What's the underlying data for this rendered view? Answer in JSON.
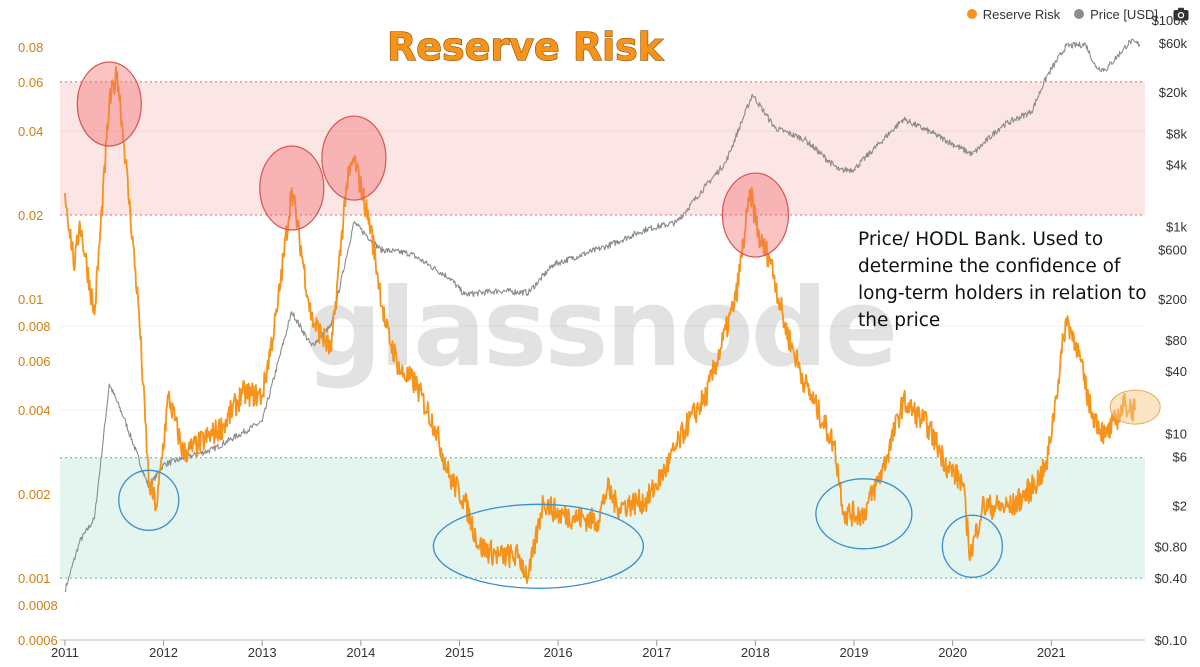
{
  "chart_data": {
    "type": "line",
    "title": "Reserve Risk",
    "watermark": "glassnode",
    "annotation": "Price/ HODL Bank. Used to determine the confidence of long-term holders in relation to the price",
    "legend": {
      "placement": "top-right",
      "items": [
        "Reserve Risk",
        "Price [USD]"
      ]
    },
    "colors": {
      "reserve_risk": "#f7931a",
      "price": "#8c8c8c",
      "high_zone": "#fbdcdc",
      "low_zone": "#e3f5ee",
      "high_line": "#e06666",
      "low_line": "#52b788"
    },
    "x": {
      "range": [
        2010.95,
        2021.95
      ],
      "tick_labels": [
        "2011",
        "2012",
        "2013",
        "2014",
        "2015",
        "2016",
        "2017",
        "2018",
        "2019",
        "2020",
        "2021"
      ]
    },
    "y_left": {
      "scale": "log",
      "range": [
        0.0006,
        0.1
      ],
      "tick_labels": [
        "0.08",
        "0.06",
        "0.04",
        "0.02",
        "0.01",
        "0.008",
        "0.006",
        "0.004",
        "0.002",
        "0.001",
        "0.0008",
        "0.0006"
      ]
    },
    "y_right": {
      "scale": "log",
      "range": [
        0.1,
        100000
      ],
      "tick_labels": [
        "$100k",
        "$60k",
        "$20k",
        "$8k",
        "$4k",
        "$1k",
        "$600",
        "$200",
        "$80",
        "$40",
        "$10",
        "$6",
        "$2",
        "$0.80",
        "$0.40",
        "$0.10"
      ]
    },
    "zones": {
      "high_band": [
        0.02,
        0.06
      ],
      "low_band": [
        0.001,
        0.0027
      ]
    },
    "series": [
      {
        "name": "Reserve Risk",
        "axis": "left",
        "points": [
          [
            2011.0,
            0.024
          ],
          [
            2011.1,
            0.013
          ],
          [
            2011.15,
            0.019
          ],
          [
            2011.3,
            0.0088
          ],
          [
            2011.45,
            0.05
          ],
          [
            2011.53,
            0.065
          ],
          [
            2011.6,
            0.036
          ],
          [
            2011.75,
            0.009
          ],
          [
            2011.85,
            0.0022
          ],
          [
            2011.93,
            0.0018
          ],
          [
            2012.05,
            0.0045
          ],
          [
            2012.2,
            0.0028
          ],
          [
            2012.35,
            0.003
          ],
          [
            2012.6,
            0.0035
          ],
          [
            2012.8,
            0.0046
          ],
          [
            2013.0,
            0.0045
          ],
          [
            2013.15,
            0.009
          ],
          [
            2013.3,
            0.025
          ],
          [
            2013.5,
            0.0085
          ],
          [
            2013.7,
            0.0065
          ],
          [
            2013.85,
            0.025
          ],
          [
            2013.93,
            0.032
          ],
          [
            2014.1,
            0.018
          ],
          [
            2014.25,
            0.008
          ],
          [
            2014.4,
            0.0055
          ],
          [
            2014.55,
            0.005
          ],
          [
            2014.75,
            0.0035
          ],
          [
            2014.9,
            0.0023
          ],
          [
            2015.05,
            0.0019
          ],
          [
            2015.2,
            0.0013
          ],
          [
            2015.4,
            0.0012
          ],
          [
            2015.6,
            0.0012
          ],
          [
            2015.7,
            0.001
          ],
          [
            2015.85,
            0.0019
          ],
          [
            2016.0,
            0.0017
          ],
          [
            2016.4,
            0.0016
          ],
          [
            2016.5,
            0.0021
          ],
          [
            2016.6,
            0.0018
          ],
          [
            2016.9,
            0.0019
          ],
          [
            2017.1,
            0.0025
          ],
          [
            2017.3,
            0.0035
          ],
          [
            2017.5,
            0.0045
          ],
          [
            2017.8,
            0.01
          ],
          [
            2017.95,
            0.024
          ],
          [
            2018.05,
            0.016
          ],
          [
            2018.15,
            0.014
          ],
          [
            2018.3,
            0.008
          ],
          [
            2018.5,
            0.005
          ],
          [
            2018.8,
            0.003
          ],
          [
            2018.9,
            0.0017
          ],
          [
            2019.1,
            0.0017
          ],
          [
            2019.3,
            0.0025
          ],
          [
            2019.5,
            0.0043
          ],
          [
            2019.75,
            0.0035
          ],
          [
            2019.95,
            0.0025
          ],
          [
            2020.1,
            0.0022
          ],
          [
            2020.18,
            0.0012
          ],
          [
            2020.3,
            0.0018
          ],
          [
            2020.6,
            0.0018
          ],
          [
            2020.8,
            0.0021
          ],
          [
            2020.95,
            0.0025
          ],
          [
            2021.05,
            0.0045
          ],
          [
            2021.15,
            0.0085
          ],
          [
            2021.25,
            0.007
          ],
          [
            2021.4,
            0.004
          ],
          [
            2021.55,
            0.0032
          ],
          [
            2021.75,
            0.0042
          ],
          [
            2021.85,
            0.004
          ]
        ]
      },
      {
        "name": "Price [USD]",
        "axis": "right",
        "points": [
          [
            2011.0,
            0.3
          ],
          [
            2011.15,
            0.9
          ],
          [
            2011.3,
            1.5
          ],
          [
            2011.45,
            30
          ],
          [
            2011.6,
            14
          ],
          [
            2011.85,
            3
          ],
          [
            2012.0,
            5
          ],
          [
            2012.5,
            7
          ],
          [
            2013.0,
            13
          ],
          [
            2013.3,
            150
          ],
          [
            2013.5,
            70
          ],
          [
            2013.7,
            110
          ],
          [
            2013.93,
            1100
          ],
          [
            2014.2,
            600
          ],
          [
            2014.5,
            550
          ],
          [
            2014.9,
            320
          ],
          [
            2015.05,
            220
          ],
          [
            2015.4,
            240
          ],
          [
            2015.7,
            230
          ],
          [
            2015.95,
            430
          ],
          [
            2016.5,
            650
          ],
          [
            2016.9,
            950
          ],
          [
            2017.2,
            1100
          ],
          [
            2017.5,
            2500
          ],
          [
            2017.7,
            4200
          ],
          [
            2017.97,
            19000
          ],
          [
            2018.2,
            9000
          ],
          [
            2018.5,
            7000
          ],
          [
            2018.85,
            3500
          ],
          [
            2019.0,
            3600
          ],
          [
            2019.5,
            11000
          ],
          [
            2019.8,
            8000
          ],
          [
            2020.2,
            5000
          ],
          [
            2020.5,
            9500
          ],
          [
            2020.8,
            13000
          ],
          [
            2020.95,
            28000
          ],
          [
            2021.15,
            56000
          ],
          [
            2021.35,
            58000
          ],
          [
            2021.45,
            35000
          ],
          [
            2021.55,
            33000
          ],
          [
            2021.8,
            62000
          ],
          [
            2021.9,
            58000
          ]
        ]
      }
    ]
  }
}
